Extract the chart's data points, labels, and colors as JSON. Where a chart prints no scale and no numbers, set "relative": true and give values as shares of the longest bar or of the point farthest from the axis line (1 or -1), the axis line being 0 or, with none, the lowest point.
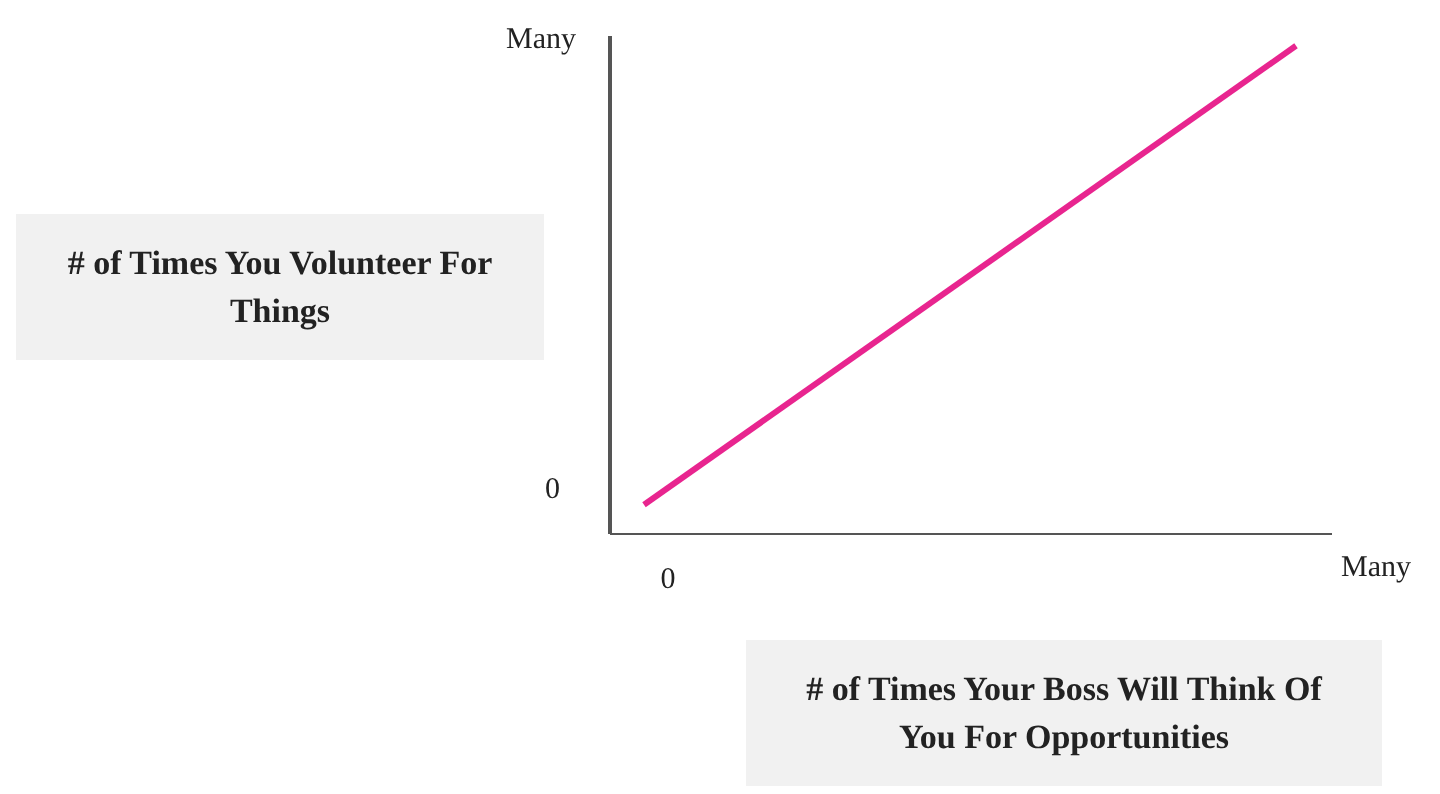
{
  "chart_data": {
    "type": "line",
    "relative": true,
    "xlabel": "# of Times Your Boss Will Think Of You For Opportunities",
    "ylabel": "# of Times You Volunteer For Things",
    "categories": [
      null,
      null
    ],
    "series": [
      {
        "color": "#e8258f",
        "values": [
          0.06,
          1
        ]
      }
    ],
    "annotations": [
      "0",
      "Many",
      "0",
      "Many"
    ],
    "grid": false,
    "legend": false,
    "marker": "none",
    "line_style": "solid"
  }
}
